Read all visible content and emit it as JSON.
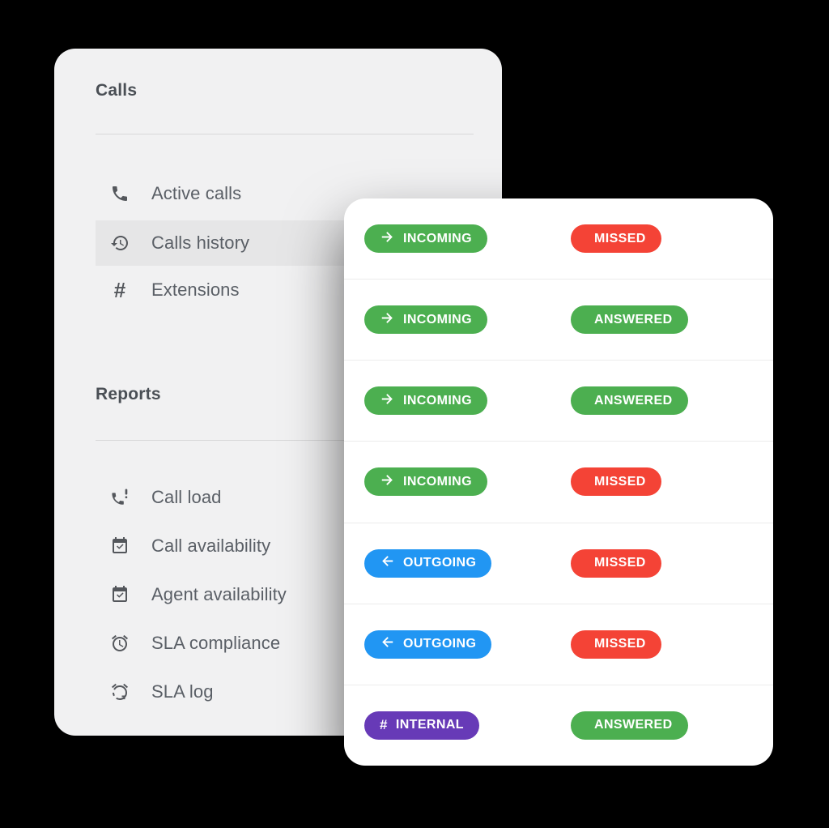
{
  "page": {
    "background": "#000000"
  },
  "palette": {
    "incoming_green": "#4CAF50",
    "outgoing_blue": "#2196F3",
    "internal_purple": "#673AB7",
    "missed_red": "#F44336",
    "answered_green": "#4CAF50",
    "sidebar_bg": "#F1F1F2",
    "sidebar_active_bg": "#E6E6E7",
    "card_bg": "#FFFFFF"
  },
  "sidebar_card": {
    "sections": [
      {
        "title": "Calls",
        "items": [
          {
            "label": "Active calls",
            "icon": "phone-icon",
            "active": false
          },
          {
            "label": "Calls history",
            "icon": "history-icon",
            "active": true
          },
          {
            "label": "Extensions",
            "icon": "hash-icon",
            "active": false
          }
        ]
      },
      {
        "title": "Reports",
        "items": [
          {
            "label": "Call load",
            "icon": "phone-alert-icon",
            "active": false
          },
          {
            "label": "Call availability",
            "icon": "calendar-check-icon",
            "active": false
          },
          {
            "label": "Agent availability",
            "icon": "calendar-check-icon",
            "active": false
          },
          {
            "label": "SLA compliance",
            "icon": "alarm-icon",
            "active": false
          },
          {
            "label": "SLA log",
            "icon": "alarm-log-icon",
            "active": false
          }
        ]
      }
    ]
  },
  "calls_card": {
    "rows": [
      {
        "direction": {
          "label": "INCOMING",
          "icon": "arrow-right-icon",
          "color": "#4CAF50"
        },
        "status": {
          "label": "MISSED",
          "icon": "phone-icon",
          "color": "#F44336"
        }
      },
      {
        "direction": {
          "label": "INCOMING",
          "icon": "arrow-right-icon",
          "color": "#4CAF50"
        },
        "status": {
          "label": "ANSWERED",
          "icon": "phone-icon",
          "color": "#4CAF50"
        }
      },
      {
        "direction": {
          "label": "INCOMING",
          "icon": "arrow-right-icon",
          "color": "#4CAF50"
        },
        "status": {
          "label": "ANSWERED",
          "icon": "phone-icon",
          "color": "#4CAF50"
        }
      },
      {
        "direction": {
          "label": "INCOMING",
          "icon": "arrow-right-icon",
          "color": "#4CAF50"
        },
        "status": {
          "label": "MISSED",
          "icon": "phone-icon",
          "color": "#F44336"
        }
      },
      {
        "direction": {
          "label": "OUTGOING",
          "icon": "arrow-left-icon",
          "color": "#2196F3"
        },
        "status": {
          "label": "MISSED",
          "icon": "phone-icon",
          "color": "#F44336"
        }
      },
      {
        "direction": {
          "label": "OUTGOING",
          "icon": "arrow-left-icon",
          "color": "#2196F3"
        },
        "status": {
          "label": "MISSED",
          "icon": "phone-icon",
          "color": "#F44336"
        }
      },
      {
        "direction": {
          "label": "INTERNAL",
          "icon": "hash-icon",
          "color": "#673AB7"
        },
        "status": {
          "label": "ANSWERED",
          "icon": "phone-icon",
          "color": "#4CAF50"
        }
      }
    ]
  }
}
